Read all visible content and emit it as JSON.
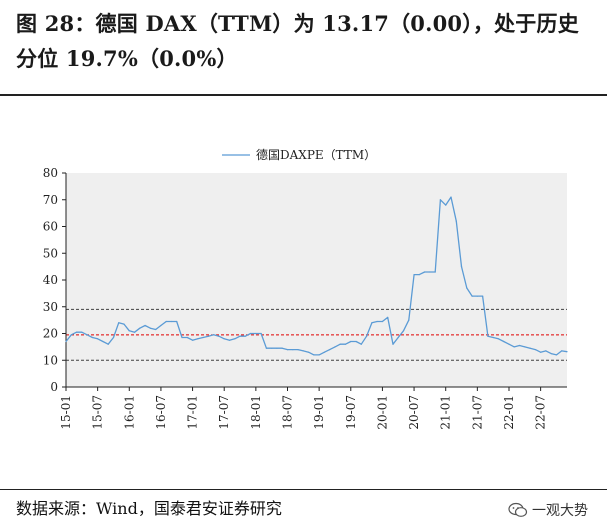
{
  "title": "图 28：德国 DAX（TTM）为 13.17（0.00），处于历史分位 19.7%（0.0%）",
  "source": "数据来源：Wind，国泰君安证券研究",
  "watermark": {
    "text": "一观大势",
    "icon": "wechat-icon"
  },
  "chart_data": {
    "type": "line",
    "legend": "德国DAXPE（TTM）",
    "legend_position": "top-center",
    "series_color": "#5B9BD5",
    "plot_background": "#EFEFEF",
    "ylim": [
      0,
      80
    ],
    "yticks": [
      0,
      10,
      20,
      30,
      40,
      50,
      60,
      70,
      80
    ],
    "xlim": [
      "2015-01",
      "2022-12"
    ],
    "xticks": [
      "15-01",
      "15-07",
      "16-01",
      "16-07",
      "17-01",
      "17-07",
      "18-01",
      "18-07",
      "19-01",
      "19-07",
      "20-01",
      "20-07",
      "21-01",
      "21-07",
      "22-01",
      "22-07"
    ],
    "reference_lines": [
      {
        "name": "upper",
        "value": 29,
        "color": "#404040",
        "style": "dashed"
      },
      {
        "name": "median",
        "value": 19.5,
        "color": "#E00000",
        "style": "dashed"
      },
      {
        "name": "lower",
        "value": 10,
        "color": "#404040",
        "style": "dashed"
      }
    ],
    "series": [
      {
        "name": "德国DAXPE（TTM）",
        "x": [
          "2015-01",
          "2015-02",
          "2015-03",
          "2015-04",
          "2015-05",
          "2015-06",
          "2015-07",
          "2015-08",
          "2015-09",
          "2015-10",
          "2015-11",
          "2015-12",
          "2016-01",
          "2016-02",
          "2016-03",
          "2016-04",
          "2016-05",
          "2016-06",
          "2016-07",
          "2016-08",
          "2016-09",
          "2016-10",
          "2016-11",
          "2016-12",
          "2017-01",
          "2017-02",
          "2017-03",
          "2017-04",
          "2017-05",
          "2017-06",
          "2017-07",
          "2017-08",
          "2017-09",
          "2017-10",
          "2017-11",
          "2017-12",
          "2018-01",
          "2018-02",
          "2018-03",
          "2018-04",
          "2018-05",
          "2018-06",
          "2018-07",
          "2018-08",
          "2018-09",
          "2018-10",
          "2018-11",
          "2018-12",
          "2019-01",
          "2019-02",
          "2019-03",
          "2019-04",
          "2019-05",
          "2019-06",
          "2019-07",
          "2019-08",
          "2019-09",
          "2019-10",
          "2019-11",
          "2019-12",
          "2020-01",
          "2020-02",
          "2020-03",
          "2020-04",
          "2020-05",
          "2020-06",
          "2020-07",
          "2020-08",
          "2020-09",
          "2020-10",
          "2020-11",
          "2020-12",
          "2021-01",
          "2021-02",
          "2021-03",
          "2021-04",
          "2021-05",
          "2021-06",
          "2021-07",
          "2021-08",
          "2021-09",
          "2021-10",
          "2021-11",
          "2021-12",
          "2022-01",
          "2022-02",
          "2022-03",
          "2022-04",
          "2022-05",
          "2022-06",
          "2022-07",
          "2022-08",
          "2022-09",
          "2022-10",
          "2022-11",
          "2022-12"
        ],
        "values": [
          17,
          19.5,
          20.5,
          20.5,
          19.5,
          18.5,
          18,
          17,
          16,
          18.5,
          24,
          23.5,
          21,
          20.5,
          22,
          23,
          22,
          21.5,
          23,
          24.5,
          24.5,
          24.5,
          18.5,
          18.5,
          17.5,
          18,
          18.5,
          19,
          19.5,
          19,
          18,
          17.5,
          18,
          19,
          19,
          20,
          20,
          20,
          14.5,
          14.5,
          14.5,
          14.5,
          14,
          14,
          14,
          13.5,
          13,
          12,
          12,
          13,
          14,
          15,
          16,
          16,
          17,
          17,
          16,
          19,
          24,
          24.5,
          24.5,
          26,
          16,
          18.5,
          21,
          25,
          42,
          42,
          43,
          43,
          43,
          70,
          68,
          71,
          62,
          45,
          37,
          34,
          34,
          34,
          19,
          18.5,
          18,
          17,
          16,
          15,
          15.5,
          15,
          14.5,
          14,
          13,
          13.5,
          12.5,
          12,
          13.5,
          13.2
        ]
      }
    ]
  }
}
